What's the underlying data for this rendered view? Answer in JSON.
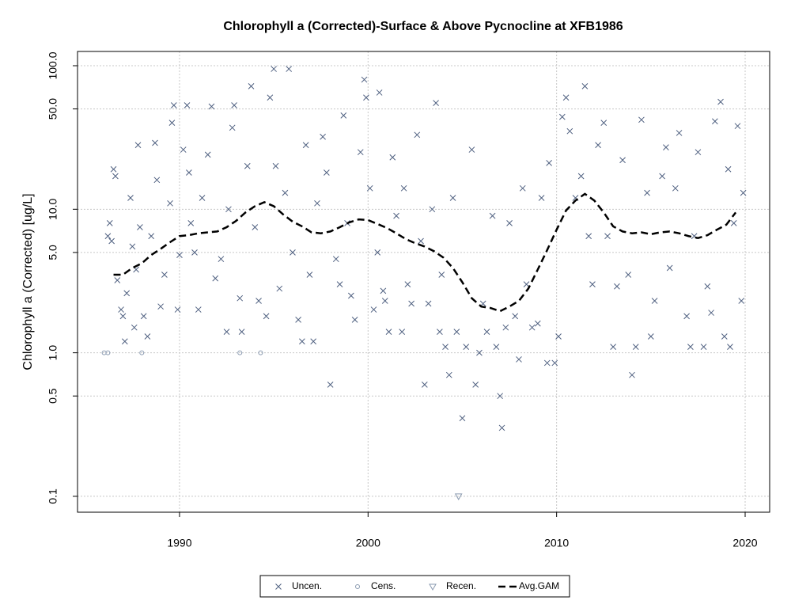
{
  "chart_data": {
    "type": "scatter",
    "title": "Chlorophyll a (Corrected)-Surface & Above Pycnocline at XFB1986",
    "y_label": "Chlorophyll a (Corrected) [ug/L]",
    "log_y": true,
    "grid": true,
    "legend": "bottom",
    "xlim": [
      1984.59,
      2021.3
    ],
    "xticks": [
      1990,
      2000,
      2010,
      2020
    ],
    "ylim": [
      0.0775,
      125.7
    ],
    "yticks": [
      0.1,
      0.5,
      {
        "value": 1,
        "label": "1.0"
      },
      {
        "value": 5,
        "label": "5.0"
      },
      {
        "value": 10,
        "label": "10.0"
      },
      {
        "value": 50,
        "label": "50.0"
      },
      {
        "value": 100,
        "label": "100.0"
      }
    ],
    "series": [
      {
        "name": "Uncen.",
        "marker": "x",
        "color": "#4f6080",
        "x": [
          1986.2,
          1986.3,
          1986.4,
          1986.5,
          1986.6,
          1986.7,
          1986.9,
          1987.0,
          1987.1,
          1987.2,
          1987.4,
          1987.5,
          1987.6,
          1987.7,
          1987.8,
          1987.9,
          1988.1,
          1988.3,
          1988.5,
          1988.7,
          1988.8,
          1989.0,
          1989.2,
          1989.5,
          1989.6,
          1989.7,
          1989.9,
          1990.0,
          1990.2,
          1990.4,
          1990.5,
          1990.6,
          1990.8,
          1991.0,
          1991.2,
          1991.5,
          1991.7,
          1991.9,
          1992.2,
          1992.5,
          1992.6,
          1992.8,
          1992.9,
          1993.2,
          1993.3,
          1993.6,
          1993.8,
          1994.0,
          1994.2,
          1994.6,
          1994.8,
          1995.0,
          1995.1,
          1995.3,
          1995.6,
          1995.8,
          1996.0,
          1996.3,
          1996.5,
          1996.7,
          1996.9,
          1997.1,
          1997.3,
          1997.6,
          1997.8,
          1998.0,
          1998.3,
          1998.5,
          1998.7,
          1998.9,
          1999.1,
          1999.3,
          1999.6,
          1999.8,
          1999.9,
          2000.1,
          2000.3,
          2000.5,
          2000.6,
          2000.8,
          2000.9,
          2001.1,
          2001.3,
          2001.5,
          2001.8,
          2001.9,
          2002.1,
          2002.3,
          2002.6,
          2002.8,
          2003.0,
          2003.2,
          2003.4,
          2003.6,
          2003.8,
          2003.9,
          2004.1,
          2004.3,
          2004.5,
          2004.7,
          2005.0,
          2005.2,
          2005.5,
          2005.7,
          2005.9,
          2006.1,
          2006.3,
          2006.6,
          2006.8,
          2007.0,
          2007.1,
          2007.3,
          2007.5,
          2007.8,
          2008.0,
          2008.2,
          2008.4,
          2008.7,
          2009.0,
          2009.2,
          2009.5,
          2009.6,
          2009.9,
          2010.1,
          2010.3,
          2010.5,
          2010.7,
          2011.0,
          2011.3,
          2011.5,
          2011.7,
          2011.9,
          2012.2,
          2012.5,
          2012.7,
          2013.0,
          2013.2,
          2013.5,
          2013.8,
          2014.0,
          2014.2,
          2014.5,
          2014.8,
          2015.0,
          2015.2,
          2015.6,
          2015.8,
          2016.0,
          2016.3,
          2016.5,
          2016.9,
          2017.1,
          2017.3,
          2017.5,
          2017.8,
          2018.0,
          2018.2,
          2018.4,
          2018.7,
          2018.9,
          2019.1,
          2019.2,
          2019.4,
          2019.6,
          2019.8,
          2019.9
        ],
        "values": [
          6.5,
          8,
          6,
          19,
          17,
          3.2,
          2,
          1.8,
          1.2,
          2.6,
          12,
          5.5,
          1.5,
          3.8,
          28,
          7.5,
          1.8,
          1.3,
          6.5,
          29,
          16,
          2.1,
          3.5,
          11,
          40,
          53,
          2,
          4.8,
          26,
          53,
          18,
          8,
          5,
          2,
          12,
          24,
          52,
          3.3,
          4.5,
          1.4,
          10,
          37,
          53,
          2.4,
          1.4,
          20,
          72,
          7.5,
          2.3,
          1.8,
          60,
          95,
          20,
          2.8,
          13,
          95,
          5,
          1.7,
          1.2,
          28,
          3.5,
          1.2,
          11,
          32,
          18,
          0.6,
          4.5,
          3,
          45,
          8,
          2.5,
          1.7,
          25,
          80,
          60,
          14,
          2,
          5,
          65,
          2.7,
          2.3,
          1.4,
          23,
          9,
          1.4,
          14,
          3,
          2.2,
          33,
          6,
          0.6,
          2.2,
          10,
          55,
          1.4,
          3.5,
          1.1,
          0.7,
          12,
          1.4,
          0.35,
          1.1,
          26,
          0.6,
          1,
          2.2,
          1.4,
          9,
          1.1,
          0.5,
          0.3,
          1.5,
          8,
          1.8,
          0.9,
          14,
          3,
          1.5,
          1.6,
          12,
          0.85,
          21,
          0.85,
          1.3,
          44,
          60,
          35,
          12,
          17,
          72,
          6.5,
          3,
          28,
          40,
          6.5,
          1.1,
          2.9,
          22,
          3.5,
          0.7,
          1.1,
          42,
          13,
          1.3,
          2.3,
          17,
          27,
          3.9,
          14,
          34,
          1.8,
          1.1,
          6.5,
          25,
          1.1,
          2.9,
          1.9,
          41,
          56,
          1.3,
          19,
          1.1,
          8,
          38,
          2.3,
          13
        ]
      },
      {
        "name": "Cens.",
        "marker": "circle",
        "color": "#8a9ab0",
        "x": [
          1986.0,
          1986.2,
          1988.0,
          1993.2,
          1994.3
        ],
        "values": [
          1,
          1,
          1,
          1,
          1
        ]
      },
      {
        "name": "Recen.",
        "marker": "triangle",
        "color": "#8a9ab0",
        "x": [
          2004.8
        ],
        "values": [
          0.1
        ]
      },
      {
        "name": "Avg.GAM",
        "marker": "dashed-line",
        "color": "#000000",
        "x": [
          1986.5,
          1987,
          1987.5,
          1988,
          1988.5,
          1989,
          1989.5,
          1990,
          1990.5,
          1991,
          1991.5,
          1992,
          1992.5,
          1993,
          1993.5,
          1994,
          1994.5,
          1995,
          1995.5,
          1996,
          1996.5,
          1997,
          1997.5,
          1998,
          1998.5,
          1999,
          1999.5,
          2000,
          2000.5,
          2001,
          2001.5,
          2002,
          2002.5,
          2003,
          2003.5,
          2004,
          2004.5,
          2005,
          2005.5,
          2006,
          2006.5,
          2007,
          2007.5,
          2008,
          2008.5,
          2009,
          2009.5,
          2010,
          2010.5,
          2011,
          2011.5,
          2012,
          2012.5,
          2013,
          2013.5,
          2014,
          2014.5,
          2015,
          2015.5,
          2016,
          2016.5,
          2017,
          2017.5,
          2018,
          2018.5,
          2019,
          2019.5
        ],
        "values": [
          3.5,
          3.5,
          3.9,
          4.2,
          4.8,
          5.3,
          5.9,
          6.5,
          6.6,
          6.8,
          6.9,
          7.0,
          7.5,
          8.3,
          9.5,
          10.5,
          11.2,
          10.5,
          9.2,
          8.2,
          7.6,
          6.9,
          6.8,
          7.0,
          7.5,
          8.1,
          8.5,
          8.4,
          7.9,
          7.4,
          6.8,
          6.2,
          5.8,
          5.5,
          5.1,
          4.6,
          3.9,
          3.1,
          2.4,
          2.1,
          2.05,
          1.95,
          2.1,
          2.3,
          2.8,
          3.8,
          5.2,
          7.2,
          9.8,
          11.5,
          12.8,
          11.5,
          9.5,
          7.6,
          7.0,
          6.8,
          6.9,
          6.7,
          6.9,
          7.0,
          6.8,
          6.5,
          6.3,
          6.6,
          7.2,
          7.8,
          9.5
        ]
      }
    ]
  }
}
